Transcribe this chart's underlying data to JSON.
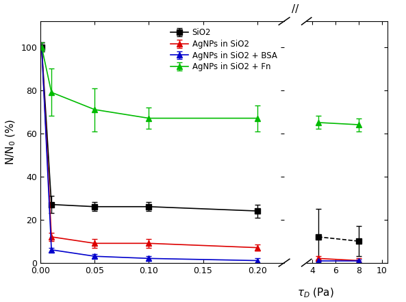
{
  "xlabel": "$\\tau_D$ (Pa)",
  "ylabel": "N/N$_0$ (%)",
  "ylim": [
    0,
    112
  ],
  "yticks": [
    0,
    20,
    40,
    60,
    80,
    100
  ],
  "series": [
    {
      "label": "SiO2",
      "color": "#000000",
      "marker": "s",
      "linestyle_left": "-",
      "linestyle_right": "--",
      "x": [
        0.001,
        0.01,
        0.05,
        0.1,
        0.2,
        4.5,
        8.0
      ],
      "y": [
        100,
        27,
        26,
        26,
        24,
        12,
        10
      ],
      "yerr": [
        2,
        4,
        2,
        2,
        3,
        13,
        7
      ]
    },
    {
      "label": "AgNPs in SiO2",
      "color": "#dd0000",
      "marker": "^",
      "linestyle_left": "-",
      "linestyle_right": "-",
      "x": [
        0.001,
        0.01,
        0.05,
        0.1,
        0.2,
        4.5,
        8.0
      ],
      "y": [
        100,
        12,
        9,
        9,
        7,
        2,
        1
      ],
      "yerr": [
        2,
        2,
        2,
        2,
        1.5,
        1,
        1
      ]
    },
    {
      "label": "AgNPs in SiO2 + BSA",
      "color": "#0000cc",
      "marker": "^",
      "linestyle_left": "-",
      "linestyle_right": "-",
      "x": [
        0.001,
        0.01,
        0.05,
        0.1,
        0.2,
        4.5,
        8.0
      ],
      "y": [
        100,
        6,
        3,
        2,
        1,
        1,
        1
      ],
      "yerr": [
        2,
        1,
        1,
        1,
        1,
        0.5,
        0.5
      ]
    },
    {
      "label": "AgNPs in SiO2 + Fn",
      "color": "#00bb00",
      "marker": "^",
      "linestyle_left": "-",
      "linestyle_right": "-",
      "x": [
        0.001,
        0.01,
        0.05,
        0.1,
        0.2,
        4.5,
        8.0
      ],
      "y": [
        100,
        79,
        71,
        67,
        67,
        65,
        64
      ],
      "yerr": [
        2,
        11,
        10,
        5,
        6,
        3,
        3
      ]
    }
  ],
  "left_xlim": [
    0.0,
    0.225
  ],
  "right_xlim": [
    3.5,
    10.5
  ],
  "left_xticks": [
    0.0,
    0.05,
    0.1,
    0.15,
    0.2
  ],
  "right_xticks": [
    4,
    6,
    8,
    10
  ],
  "background_color": "#ffffff",
  "legend_fontsize": 8.5,
  "axis_fontsize": 11,
  "tick_fontsize": 9
}
